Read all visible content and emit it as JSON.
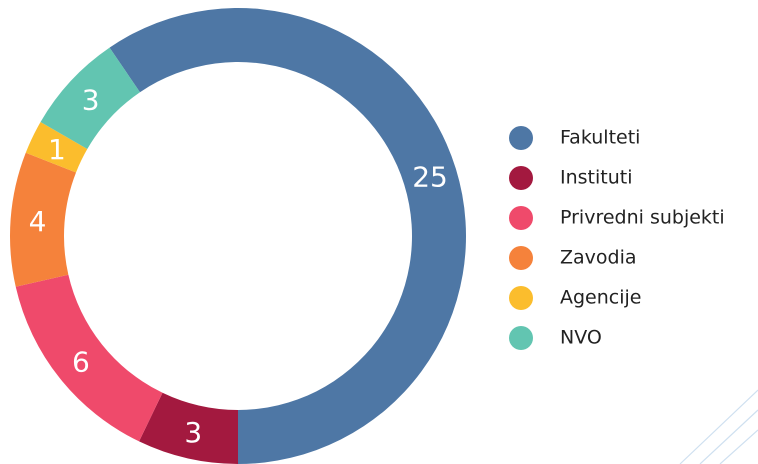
{
  "chart_data": {
    "type": "donut",
    "categories": [
      "Fakulteti",
      "Instituti",
      "Privredni subjekti",
      "Zavodia",
      "Agencije",
      "NVO"
    ],
    "values": [
      25,
      3,
      6,
      4,
      1,
      3
    ],
    "colors": [
      "#4e77a5",
      "#a3193f",
      "#ef4a6b",
      "#f5823b",
      "#fbbd2d",
      "#62c5b1"
    ],
    "legend": "right"
  }
}
